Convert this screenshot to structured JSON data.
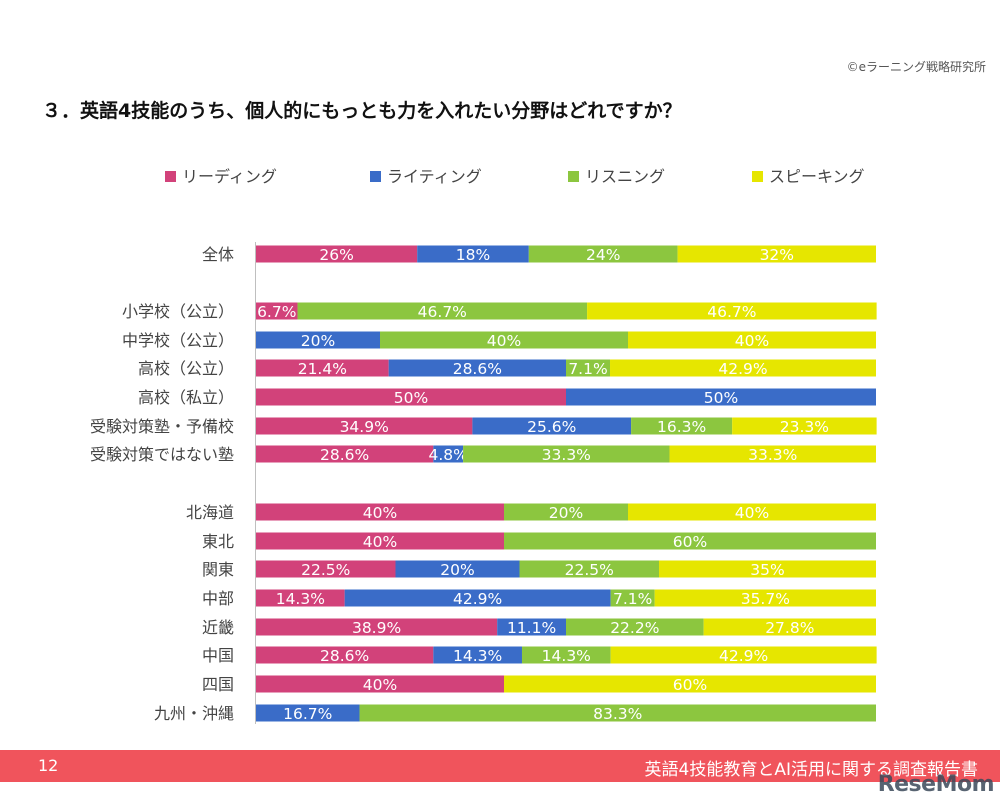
{
  "header": {
    "copyright": "©eラーニング戦略研究所",
    "title": "３．英語4技能のうち、個人的にもっとも力を入れたい分野はどれですか？"
  },
  "footer": {
    "page_number": "12",
    "report_title": "英語4技能教育とAI活用に関する調査報告書"
  },
  "watermark": "ReseMom",
  "colors": {
    "reading": "#d2427a",
    "writing": "#3a6cc8",
    "listening": "#8cc63f",
    "speaking": "#e6e600",
    "footer": "#f0545c"
  },
  "chart_data": {
    "type": "bar",
    "orientation": "horizontal",
    "stacked": "percent",
    "legend_position": "top",
    "series": [
      {
        "name": "リーディング",
        "color": "#d2427a",
        "values": [
          26,
          6.7,
          null,
          21.4,
          50,
          34.9,
          28.6,
          40,
          40,
          22.5,
          14.3,
          38.9,
          28.6,
          40,
          null
        ],
        "labels": [
          "26%",
          "6.7%",
          "",
          "21.4%",
          "50%",
          "34.9%",
          "28.6%",
          "40%",
          "40%",
          "22.5%",
          "14.3%",
          "38.9%",
          "28.6%",
          "40%",
          ""
        ]
      },
      {
        "name": "ライティング",
        "color": "#3a6cc8",
        "values": [
          18,
          null,
          20,
          28.6,
          50,
          25.6,
          4.8,
          null,
          null,
          20,
          42.9,
          11.1,
          14.3,
          null,
          16.7
        ],
        "labels": [
          "18%",
          "",
          "20%",
          "28.6%",
          "50%",
          "25.6%",
          "4.8%",
          "",
          "",
          "20%",
          "42.9%",
          "11.1%",
          "14.3%",
          "",
          "16.7%"
        ]
      },
      {
        "name": "リスニング",
        "color": "#8cc63f",
        "values": [
          24,
          46.7,
          40,
          7.1,
          null,
          16.3,
          33.3,
          20,
          60,
          22.5,
          7.1,
          22.2,
          14.3,
          null,
          83.3
        ],
        "labels": [
          "24%",
          "46.7%",
          "40%",
          "7.1%",
          "",
          "16.3%",
          "33.3%",
          "20%",
          "60%",
          "22.5%",
          "7.1%",
          "22.2%",
          "14.3%",
          "",
          "83.3%"
        ]
      },
      {
        "name": "スピーキング",
        "color": "#e6e600",
        "values": [
          32,
          46.7,
          40,
          42.9,
          null,
          23.3,
          33.3,
          40,
          null,
          35,
          35.7,
          27.8,
          42.9,
          60,
          null
        ],
        "labels": [
          "32%",
          "46.7%",
          "40%",
          "42.9%",
          "",
          "23.3%",
          "33.3%",
          "40%",
          "",
          "35%",
          "35.7%",
          "27.8%",
          "42.9%",
          "60%",
          ""
        ]
      }
    ],
    "categories": [
      "全体",
      "小学校（公立）",
      "中学校（公立）",
      "高校（公立）",
      "高校（私立）",
      "受験対策塾・予備校",
      "受験対策ではない塾",
      "北海道",
      "東北",
      "関東",
      "中部",
      "近畿",
      "中国",
      "四国",
      "九州・沖縄"
    ],
    "xlim": [
      0,
      100
    ],
    "grid": false
  }
}
